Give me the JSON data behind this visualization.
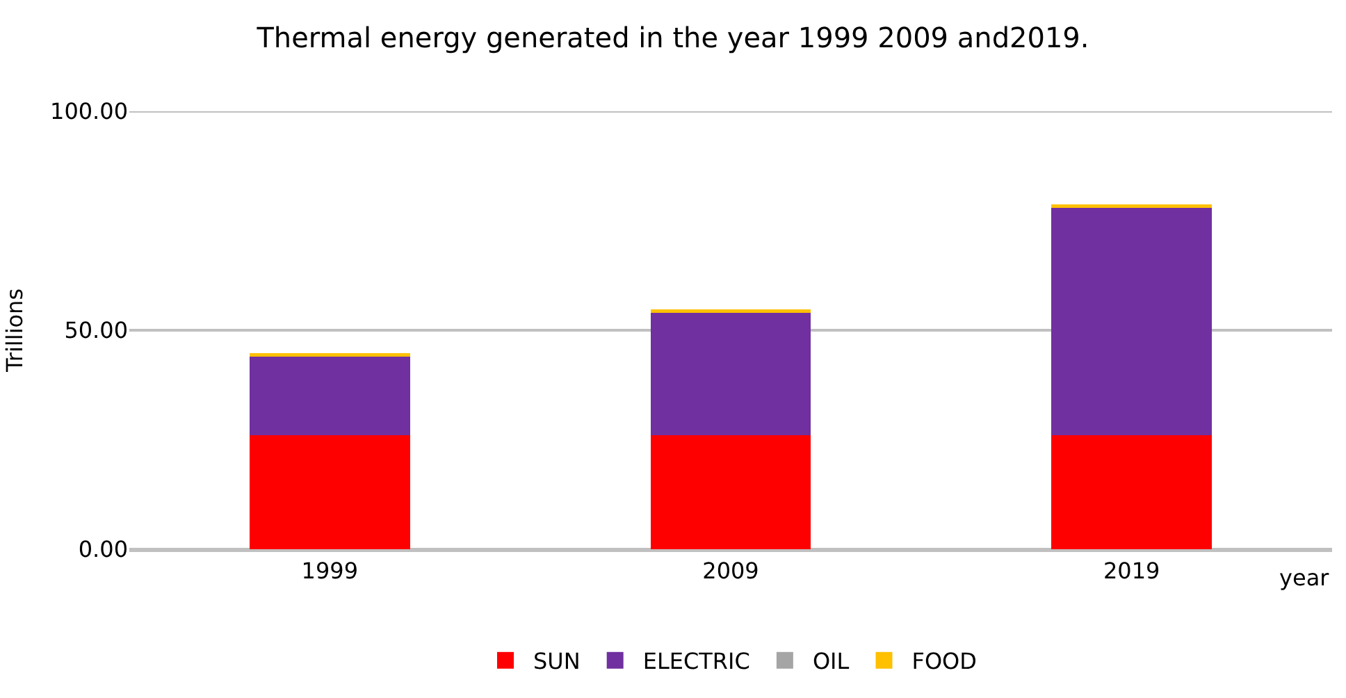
{
  "chart_data": {
    "type": "bar",
    "title": "Thermal energy generated in the year 1999 2009 and2019.",
    "ylabel": "Trillions",
    "xlabel": "year",
    "categories": [
      "1999",
      "2009",
      "2019"
    ],
    "stacked": true,
    "series": [
      {
        "name": "SUN",
        "color": "#ff0000",
        "values": [
          26,
          26,
          26
        ]
      },
      {
        "name": "ELECTRIC",
        "color": "#7030a0",
        "values": [
          18,
          28,
          52
        ]
      },
      {
        "name": "OIL",
        "color": "#a5a5a5",
        "values": [
          null,
          null,
          null
        ]
      },
      {
        "name": "FOOD",
        "color": "#ffc000",
        "values": [
          0.8,
          0.8,
          0.8
        ]
      }
    ],
    "ylim": [
      0,
      100
    ],
    "yticks": [
      {
        "value": 0,
        "label": "0.00"
      },
      {
        "value": 50,
        "label": "50.00"
      },
      {
        "value": 100,
        "label": "100.00"
      }
    ],
    "grid": "y",
    "legend": "bottom"
  }
}
